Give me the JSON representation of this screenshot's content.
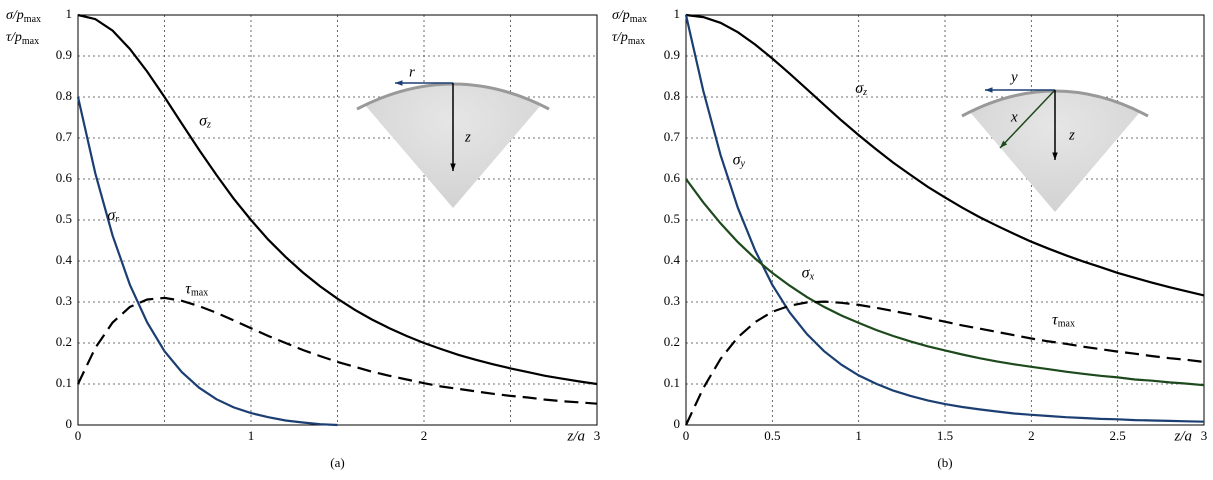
{
  "chart_data": [
    {
      "type": "line",
      "caption": "(a)",
      "ylabel": [
        "σ/pmax",
        "τ/pmax"
      ],
      "xlabel": "z/a",
      "xlim": [
        0,
        3
      ],
      "ylim": [
        0,
        1
      ],
      "xticks": [
        0,
        1,
        2,
        3
      ],
      "xminor_grid": [
        0.5,
        1.5,
        2.5
      ],
      "yticks": [
        0,
        0.1,
        0.2,
        0.3,
        0.4,
        0.5,
        0.6,
        0.7,
        0.8,
        0.9,
        1
      ],
      "grid": true,
      "inset_labels": [
        "r",
        "z"
      ],
      "x": [
        0,
        0.1,
        0.2,
        0.3,
        0.4,
        0.5,
        0.6,
        0.7,
        0.8,
        0.9,
        1,
        1.1,
        1.2,
        1.3,
        1.4,
        1.5,
        1.6,
        1.7,
        1.8,
        1.9,
        2,
        2.1,
        2.2,
        2.3,
        2.4,
        2.5,
        2.6,
        2.7,
        2.8,
        2.9,
        3
      ],
      "series": [
        {
          "name": "σz",
          "color": "#000000",
          "style": "solid",
          "values": [
            1,
            0.99,
            0.962,
            0.917,
            0.862,
            0.8,
            0.735,
            0.671,
            0.61,
            0.552,
            0.5,
            0.452,
            0.41,
            0.372,
            0.338,
            0.308,
            0.281,
            0.257,
            0.236,
            0.217,
            0.2,
            0.185,
            0.171,
            0.159,
            0.148,
            0.138,
            0.129,
            0.12,
            0.113,
            0.106,
            0.1
          ]
        },
        {
          "name": "σr",
          "color": "#1b3f72",
          "style": "solid",
          "values": [
            0.8,
            0.614,
            0.462,
            0.342,
            0.25,
            0.18,
            0.129,
            0.091,
            0.063,
            0.043,
            0.029,
            0.019,
            0.011,
            0.006,
            0.002,
            0,
            null,
            null,
            null,
            null,
            null,
            null,
            null,
            null,
            null,
            null,
            null,
            null,
            null,
            null,
            null
          ]
        },
        {
          "name": "τmax",
          "color": "#000000",
          "style": "dashed",
          "values": [
            0.1,
            0.188,
            0.25,
            0.288,
            0.306,
            0.31,
            0.303,
            0.29,
            0.274,
            0.255,
            0.236,
            0.217,
            0.2,
            0.183,
            0.168,
            0.154,
            0.142,
            0.13,
            0.12,
            0.111,
            0.102,
            0.094,
            0.088,
            0.082,
            0.076,
            0.071,
            0.067,
            0.062,
            0.058,
            0.055,
            0.052
          ]
        }
      ]
    },
    {
      "type": "line",
      "caption": "(b)",
      "ylabel": [
        "σ/pmax",
        "τ/pmax"
      ],
      "xlabel": "z/a",
      "xlim": [
        0,
        3
      ],
      "ylim": [
        0,
        1
      ],
      "xticks": [
        0,
        0.5,
        1,
        1.5,
        2,
        2.5,
        3
      ],
      "yticks": [
        0,
        0.1,
        0.2,
        0.3,
        0.4,
        0.5,
        0.6,
        0.7,
        0.8,
        0.9,
        1
      ],
      "grid": true,
      "inset_labels": [
        "y",
        "x",
        "z"
      ],
      "x": [
        0,
        0.1,
        0.2,
        0.3,
        0.4,
        0.5,
        0.6,
        0.7,
        0.8,
        0.9,
        1,
        1.1,
        1.2,
        1.3,
        1.4,
        1.5,
        1.6,
        1.7,
        1.8,
        1.9,
        2,
        2.1,
        2.2,
        2.3,
        2.4,
        2.5,
        2.6,
        2.7,
        2.8,
        2.9,
        3
      ],
      "series": [
        {
          "name": "σz",
          "color": "#000000",
          "style": "solid",
          "values": [
            1,
            0.995,
            0.981,
            0.958,
            0.928,
            0.894,
            0.857,
            0.819,
            0.781,
            0.743,
            0.707,
            0.673,
            0.64,
            0.61,
            0.581,
            0.555,
            0.53,
            0.507,
            0.486,
            0.466,
            0.447,
            0.43,
            0.414,
            0.399,
            0.385,
            0.371,
            0.359,
            0.347,
            0.336,
            0.326,
            0.316
          ]
        },
        {
          "name": "σy",
          "color": "#1b3f72",
          "style": "solid",
          "values": [
            1,
            0.815,
            0.659,
            0.53,
            0.426,
            0.342,
            0.275,
            0.222,
            0.18,
            0.147,
            0.121,
            0.101,
            0.084,
            0.071,
            0.06,
            0.051,
            0.044,
            0.038,
            0.033,
            0.028,
            0.025,
            0.022,
            0.019,
            0.017,
            0.015,
            0.014,
            0.012,
            0.011,
            0.01,
            0.009,
            0.008
          ]
        },
        {
          "name": "σx",
          "color": "#1d4a1d",
          "style": "solid",
          "values": [
            0.6,
            0.543,
            0.492,
            0.446,
            0.406,
            0.371,
            0.34,
            0.312,
            0.288,
            0.267,
            0.249,
            0.232,
            0.217,
            0.204,
            0.192,
            0.182,
            0.172,
            0.163,
            0.155,
            0.148,
            0.142,
            0.136,
            0.13,
            0.125,
            0.12,
            0.116,
            0.111,
            0.108,
            0.104,
            0.101,
            0.097
          ]
        },
        {
          "name": "τmax",
          "color": "#000000",
          "style": "dashed",
          "values": [
            0,
            0.09,
            0.161,
            0.214,
            0.251,
            0.276,
            0.291,
            0.299,
            0.301,
            0.298,
            0.293,
            0.286,
            0.278,
            0.27,
            0.261,
            0.252,
            0.243,
            0.235,
            0.227,
            0.219,
            0.211,
            0.204,
            0.198,
            0.191,
            0.185,
            0.179,
            0.174,
            0.168,
            0.163,
            0.159,
            0.154
          ]
        }
      ]
    }
  ]
}
